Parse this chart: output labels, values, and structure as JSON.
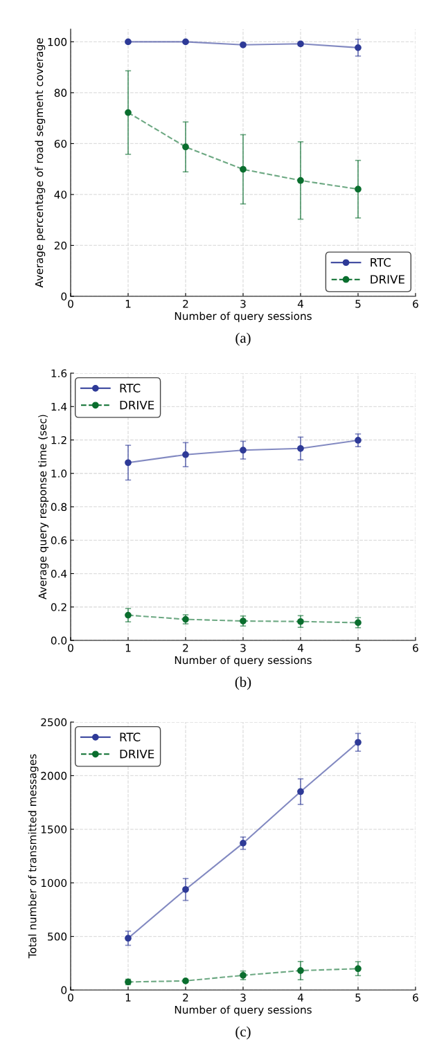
{
  "chart_data": [
    {
      "type": "line",
      "xlabel": "Number of query sessions",
      "ylabel": "Average percentage of road segment coverage",
      "annotations": [
        "(a)"
      ],
      "x": [
        1,
        2,
        3,
        4,
        5
      ],
      "xlim": [
        0,
        6
      ],
      "xticks": [
        0,
        1,
        2,
        3,
        4,
        5,
        6
      ],
      "ylim": [
        0,
        105
      ],
      "yticks": [
        0,
        20,
        40,
        60,
        80,
        100
      ],
      "grid": true,
      "legend": "bottom right",
      "marker": "circle",
      "series": [
        {
          "name": "RTC",
          "color": "#2e3a97",
          "line_style": "solid",
          "values": [
            100,
            100,
            98.8,
            99.2,
            97.7
          ],
          "errors": [
            0.3,
            0.3,
            0.5,
            0.7,
            3.3
          ]
        },
        {
          "name": "DRIVE",
          "color": "#0a6e2e",
          "line_style": "dashed",
          "values": [
            72.2,
            58.7,
            49.9,
            45.5,
            42.1
          ],
          "errors": [
            16.4,
            9.8,
            13.6,
            15.2,
            11.3
          ]
        }
      ]
    },
    {
      "type": "line",
      "xlabel": "Number of query sessions",
      "ylabel": "Average query response time (sec)",
      "annotations": [
        "(b)"
      ],
      "x": [
        1,
        2,
        3,
        4,
        5
      ],
      "xlim": [
        0,
        6
      ],
      "xticks": [
        0,
        1,
        2,
        3,
        4,
        5,
        6
      ],
      "ylim": [
        0,
        1.6
      ],
      "yticks": [
        {
          "value": 0,
          "label": "0.0"
        },
        0.2,
        0.4,
        0.6,
        0.8,
        {
          "value": 1,
          "label": "1.0"
        },
        1.2,
        1.4,
        1.6
      ],
      "grid": true,
      "legend": "top left",
      "marker": "circle",
      "series": [
        {
          "name": "RTC",
          "color": "#2e3a97",
          "line_style": "solid",
          "values": [
            1.064,
            1.112,
            1.139,
            1.149,
            1.198
          ],
          "errors": [
            0.104,
            0.072,
            0.053,
            0.068,
            0.038
          ]
        },
        {
          "name": "DRIVE",
          "color": "#0a6e2e",
          "line_style": "dashed",
          "values": [
            0.151,
            0.126,
            0.116,
            0.113,
            0.106
          ],
          "errors": [
            0.04,
            0.027,
            0.03,
            0.035,
            0.03
          ]
        }
      ]
    },
    {
      "type": "line",
      "xlabel": "Number of query sessions",
      "ylabel": "Total number of transmitted messages",
      "annotations": [
        "(c)"
      ],
      "x": [
        1,
        2,
        3,
        4,
        5
      ],
      "xlim": [
        0,
        6
      ],
      "xticks": [
        0,
        1,
        2,
        3,
        4,
        5,
        6
      ],
      "ylim": [
        0,
        2500
      ],
      "yticks": [
        0,
        500,
        1000,
        1500,
        2000,
        2500
      ],
      "grid": true,
      "legend": "top left",
      "marker": "circle",
      "series": [
        {
          "name": "RTC",
          "color": "#2e3a97",
          "line_style": "solid",
          "values": [
            483,
            938,
            1370,
            1851,
            2311
          ],
          "errors": [
            66,
            102,
            57,
            119,
            83
          ]
        },
        {
          "name": "DRIVE",
          "color": "#0a6e2e",
          "line_style": "dashed",
          "values": [
            75,
            85,
            137,
            181,
            199
          ],
          "errors": [
            25,
            15,
            40,
            85,
            65
          ]
        }
      ]
    }
  ]
}
